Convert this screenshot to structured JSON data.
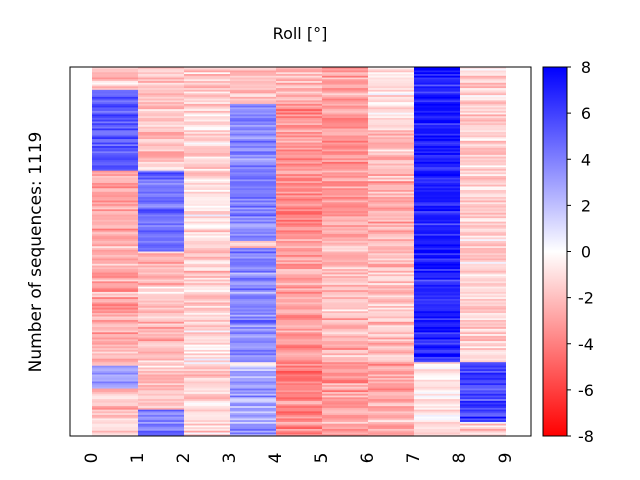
{
  "chart_data": {
    "type": "heatmap",
    "title": "Roll [°]",
    "ylabel": "Number of sequences: 1119",
    "xlabel": "",
    "x_ticks": [
      "0",
      "1",
      "2",
      "3",
      "4",
      "5",
      "6",
      "7",
      "8",
      "9"
    ],
    "colorbar": {
      "colormap": "bwr",
      "range": [
        -8,
        8
      ],
      "ticks": [
        "8",
        "6",
        "4",
        "2",
        "0",
        "-2",
        "-4",
        "-6",
        "-8"
      ],
      "low_color": "#ff0000",
      "mid_color": "#ffffff",
      "high_color": "#0000ff"
    },
    "n_rows": 1119,
    "columns": [
      {
        "column": "0",
        "segments": [
          {
            "from": 0.0,
            "to": 0.06,
            "mean": -2.0
          },
          {
            "from": 0.06,
            "to": 0.28,
            "mean": 5.0
          },
          {
            "from": 0.28,
            "to": 0.5,
            "mean": -2.5
          },
          {
            "from": 0.5,
            "to": 0.81,
            "mean": -2.5
          },
          {
            "from": 0.81,
            "to": 0.87,
            "mean": 3.0
          },
          {
            "from": 0.87,
            "to": 1.0,
            "mean": -2.0
          }
        ]
      },
      {
        "column": "1",
        "segments": [
          {
            "from": 0.0,
            "to": 0.28,
            "mean": -2.0
          },
          {
            "from": 0.28,
            "to": 0.5,
            "mean": 4.5
          },
          {
            "from": 0.5,
            "to": 0.93,
            "mean": -2.0
          },
          {
            "from": 0.93,
            "to": 1.0,
            "mean": 4.0
          }
        ]
      },
      {
        "column": "2",
        "segments": [
          {
            "from": 0.0,
            "to": 0.3,
            "mean": -1.5
          },
          {
            "from": 0.3,
            "to": 0.47,
            "mean": -0.8
          },
          {
            "from": 0.47,
            "to": 0.7,
            "mean": -1.5
          },
          {
            "from": 0.7,
            "to": 1.0,
            "mean": -1.2
          }
        ]
      },
      {
        "column": "3",
        "segments": [
          {
            "from": 0.0,
            "to": 0.1,
            "mean": -2.0
          },
          {
            "from": 0.1,
            "to": 0.47,
            "mean": 4.0
          },
          {
            "from": 0.47,
            "to": 0.49,
            "mean": -2.0
          },
          {
            "from": 0.49,
            "to": 0.8,
            "mean": 3.5
          },
          {
            "from": 0.8,
            "to": 0.81,
            "mean": -1.0
          },
          {
            "from": 0.81,
            "to": 1.0,
            "mean": 3.0
          }
        ]
      },
      {
        "column": "4",
        "segments": [
          {
            "from": 0.0,
            "to": 0.1,
            "mean": -2.0
          },
          {
            "from": 0.1,
            "to": 0.47,
            "mean": -3.5
          },
          {
            "from": 0.47,
            "to": 0.8,
            "mean": -3.0
          },
          {
            "from": 0.8,
            "to": 1.0,
            "mean": -3.5
          }
        ]
      },
      {
        "column": "5",
        "segments": [
          {
            "from": 0.0,
            "to": 0.47,
            "mean": -3.0
          },
          {
            "from": 0.47,
            "to": 0.8,
            "mean": -2.0
          },
          {
            "from": 0.8,
            "to": 1.0,
            "mean": -3.0
          }
        ]
      },
      {
        "column": "6",
        "segments": [
          {
            "from": 0.0,
            "to": 0.17,
            "mean": -1.0
          },
          {
            "from": 0.17,
            "to": 0.5,
            "mean": -2.5
          },
          {
            "from": 0.5,
            "to": 0.8,
            "mean": -2.0
          },
          {
            "from": 0.8,
            "to": 1.0,
            "mean": -2.5
          }
        ]
      },
      {
        "column": "7",
        "segments": [
          {
            "from": 0.0,
            "to": 0.8,
            "mean": 7.0
          },
          {
            "from": 0.8,
            "to": 1.0,
            "mean": -0.5
          }
        ]
      },
      {
        "column": "8",
        "segments": [
          {
            "from": 0.0,
            "to": 0.8,
            "mean": -1.5
          },
          {
            "from": 0.8,
            "to": 0.96,
            "mean": 6.0
          },
          {
            "from": 0.96,
            "to": 1.0,
            "mean": -1.0
          }
        ]
      },
      {
        "column": "9",
        "segments": []
      }
    ]
  }
}
